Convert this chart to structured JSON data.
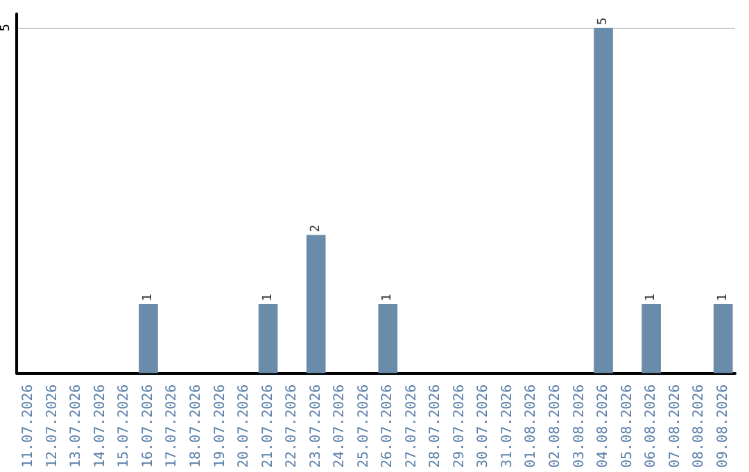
{
  "chart_data": {
    "type": "bar",
    "categories": [
      "11.07.2026",
      "12.07.2026",
      "13.07.2026",
      "14.07.2026",
      "15.07.2026",
      "16.07.2026",
      "17.07.2026",
      "18.07.2026",
      "19.07.2026",
      "20.07.2026",
      "21.07.2026",
      "22.07.2026",
      "23.07.2026",
      "24.07.2026",
      "25.07.2026",
      "26.07.2026",
      "27.07.2026",
      "28.07.2026",
      "29.07.2026",
      "30.07.2026",
      "31.07.2026",
      "01.08.2026",
      "02.08.2026",
      "03.08.2026",
      "04.08.2026",
      "05.08.2026",
      "06.08.2026",
      "07.08.2026",
      "08.08.2026",
      "09.08.2026"
    ],
    "values": [
      0,
      0,
      0,
      0,
      0,
      1,
      0,
      0,
      0,
      0,
      1,
      0,
      2,
      0,
      0,
      1,
      0,
      0,
      0,
      0,
      0,
      0,
      0,
      0,
      5,
      0,
      1,
      0,
      0,
      1
    ],
    "value_labels": [
      null,
      null,
      null,
      null,
      null,
      "1",
      null,
      null,
      null,
      null,
      "1",
      null,
      "2",
      null,
      null,
      "1",
      null,
      null,
      null,
      null,
      null,
      null,
      null,
      null,
      "5",
      null,
      "1",
      null,
      null,
      "1"
    ],
    "color": "#6a8cab",
    "ylim": [
      0,
      5.2
    ],
    "yticks": [
      5
    ],
    "grid": "y"
  }
}
